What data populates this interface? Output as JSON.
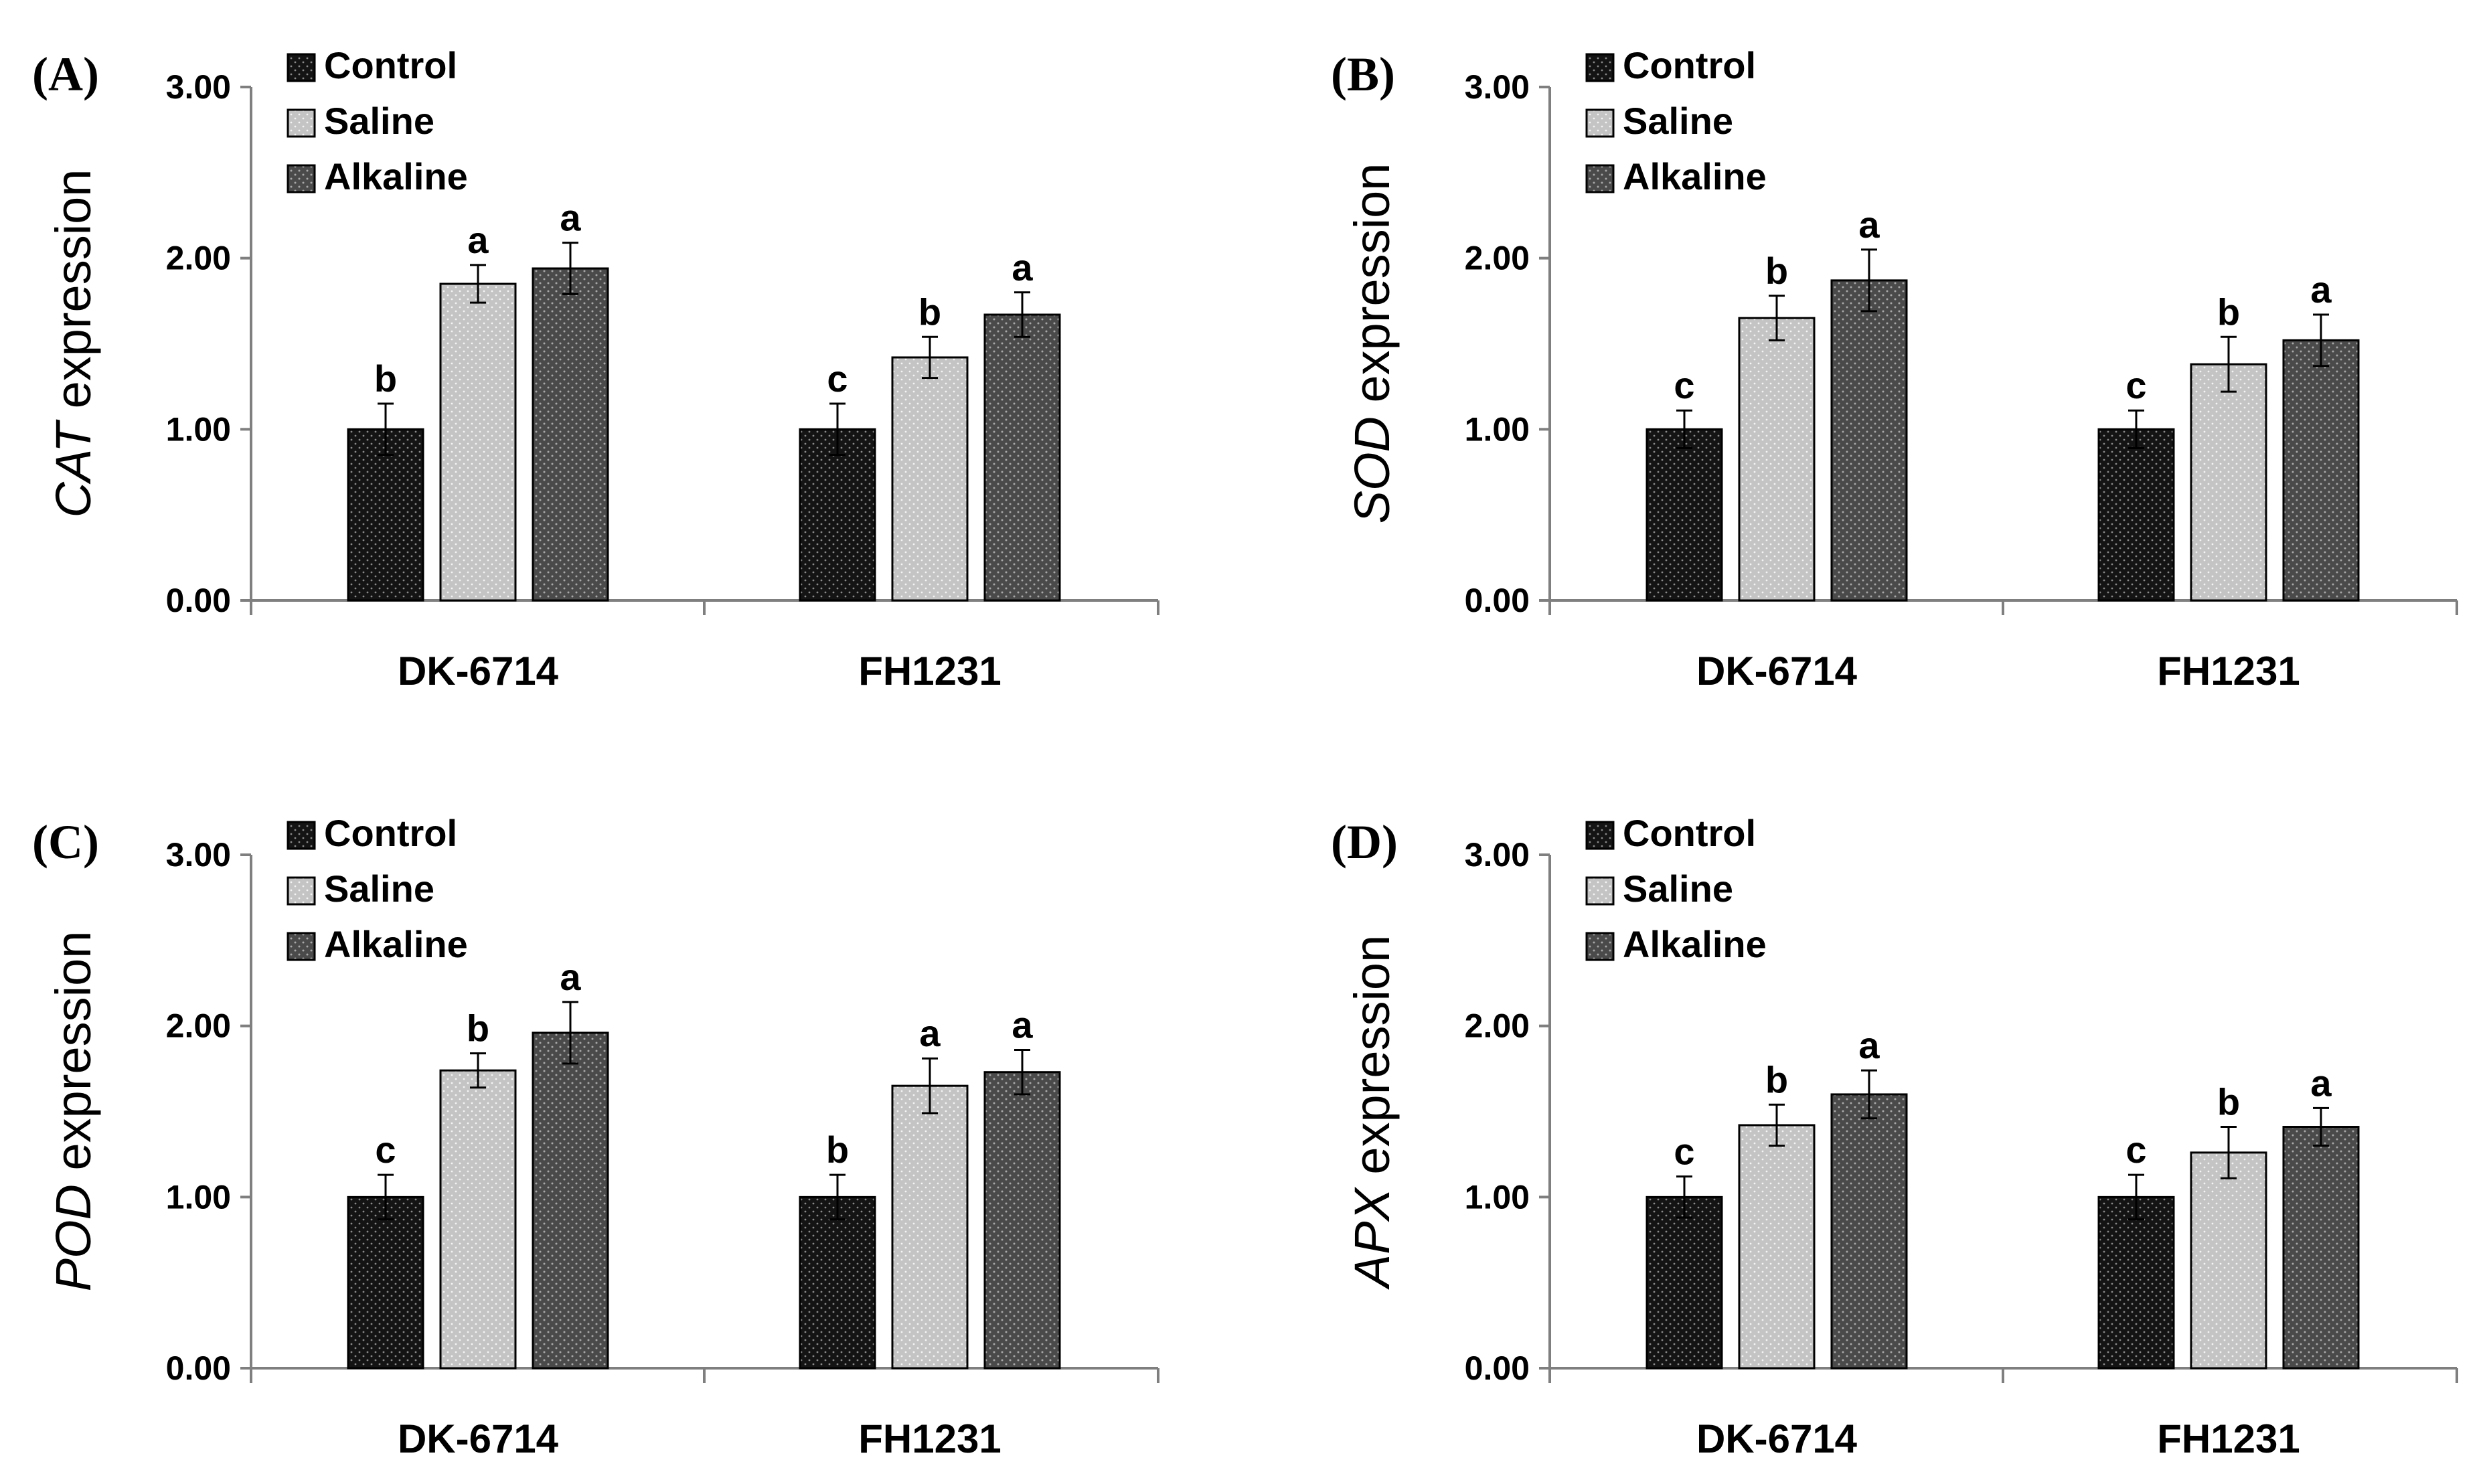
{
  "chart_data": [
    {
      "type": "bar",
      "panel_label": "(A)",
      "gene": "CAT",
      "ylabel_suffix": " expression",
      "categories": [
        "DK-6714",
        "FH1231"
      ],
      "ylim": [
        0,
        3
      ],
      "yticks": [
        0,
        1,
        2,
        3
      ],
      "ytick_labels": [
        "0.00",
        "1.00",
        "2.00",
        "3.00"
      ],
      "legend_position": "top-left",
      "series": [
        {
          "name": "Control",
          "values": [
            1.0,
            1.0
          ],
          "errors": [
            0.15,
            0.15
          ],
          "letters": [
            "b",
            "c"
          ],
          "pattern": "control"
        },
        {
          "name": "Saline",
          "values": [
            1.85,
            1.42
          ],
          "errors": [
            0.11,
            0.12
          ],
          "letters": [
            "a",
            "b"
          ],
          "pattern": "saline"
        },
        {
          "name": "Alkaline",
          "values": [
            1.94,
            1.67
          ],
          "errors": [
            0.15,
            0.13
          ],
          "letters": [
            "a",
            "a"
          ],
          "pattern": "alkaline"
        }
      ]
    },
    {
      "type": "bar",
      "panel_label": "(B)",
      "gene": "SOD",
      "ylabel_suffix": " expression",
      "categories": [
        "DK-6714",
        "FH1231"
      ],
      "ylim": [
        0,
        3
      ],
      "yticks": [
        0,
        1,
        2,
        3
      ],
      "ytick_labels": [
        "0.00",
        "1.00",
        "2.00",
        "3.00"
      ],
      "legend_position": "top-left",
      "series": [
        {
          "name": "Control",
          "values": [
            1.0,
            1.0
          ],
          "errors": [
            0.11,
            0.11
          ],
          "letters": [
            "c",
            "c"
          ],
          "pattern": "control"
        },
        {
          "name": "Saline",
          "values": [
            1.65,
            1.38
          ],
          "errors": [
            0.13,
            0.16
          ],
          "letters": [
            "b",
            "b"
          ],
          "pattern": "saline"
        },
        {
          "name": "Alkaline",
          "values": [
            1.87,
            1.52
          ],
          "errors": [
            0.18,
            0.15
          ],
          "letters": [
            "a",
            "a"
          ],
          "pattern": "alkaline"
        }
      ]
    },
    {
      "type": "bar",
      "panel_label": "(C)",
      "gene": "POD",
      "ylabel_suffix": " expression",
      "categories": [
        "DK-6714",
        "FH1231"
      ],
      "ylim": [
        0,
        3
      ],
      "yticks": [
        0,
        1,
        2,
        3
      ],
      "ytick_labels": [
        "0.00",
        "1.00",
        "2.00",
        "3.00"
      ],
      "legend_position": "top-left",
      "series": [
        {
          "name": "Control",
          "values": [
            1.0,
            1.0
          ],
          "errors": [
            0.13,
            0.13
          ],
          "letters": [
            "c",
            "b"
          ],
          "pattern": "control"
        },
        {
          "name": "Saline",
          "values": [
            1.74,
            1.65
          ],
          "errors": [
            0.1,
            0.16
          ],
          "letters": [
            "b",
            "a"
          ],
          "pattern": "saline"
        },
        {
          "name": "Alkaline",
          "values": [
            1.96,
            1.73
          ],
          "errors": [
            0.18,
            0.13
          ],
          "letters": [
            "a",
            "a"
          ],
          "pattern": "alkaline"
        }
      ]
    },
    {
      "type": "bar",
      "panel_label": "(D)",
      "gene": "APX",
      "ylabel_suffix": " expression",
      "categories": [
        "DK-6714",
        "FH1231"
      ],
      "ylim": [
        0,
        3
      ],
      "yticks": [
        0,
        1,
        2,
        3
      ],
      "ytick_labels": [
        "0.00",
        "1.00",
        "2.00",
        "3.00"
      ],
      "legend_position": "top-left",
      "series": [
        {
          "name": "Control",
          "values": [
            1.0,
            1.0
          ],
          "errors": [
            0.12,
            0.13
          ],
          "letters": [
            "c",
            "c"
          ],
          "pattern": "control"
        },
        {
          "name": "Saline",
          "values": [
            1.42,
            1.26
          ],
          "errors": [
            0.12,
            0.15
          ],
          "letters": [
            "b",
            "b"
          ],
          "pattern": "saline"
        },
        {
          "name": "Alkaline",
          "values": [
            1.6,
            1.41
          ],
          "errors": [
            0.14,
            0.11
          ],
          "letters": [
            "a",
            "a"
          ],
          "pattern": "alkaline"
        }
      ]
    }
  ],
  "colors": {
    "control": "#141414",
    "saline": "#c2c2c2",
    "alkaline": "#4a4a4a",
    "axis": "#7f7f7f"
  }
}
